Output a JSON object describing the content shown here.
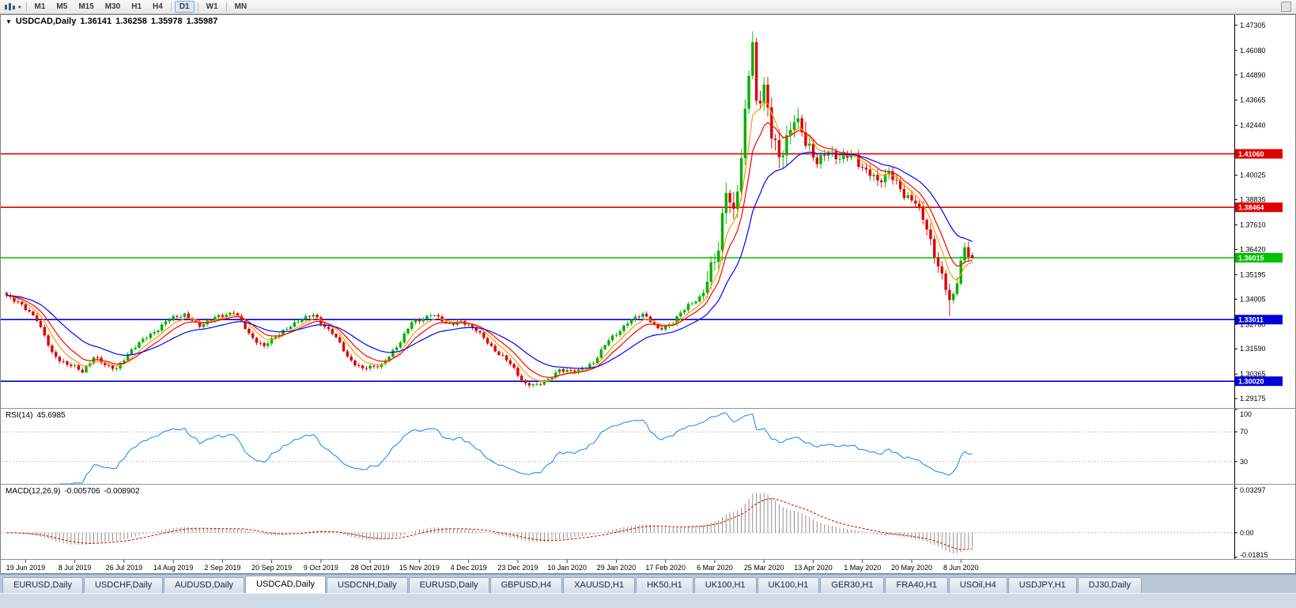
{
  "icons": {
    "symbol_dropdown": "▼",
    "toolbar_caret": "▾"
  },
  "colors": {
    "candle_up": "#00b000",
    "candle_down": "#dc0000",
    "ma_fast": "#ff9900",
    "ma_mid": "#ff0000",
    "ma_slow": "#0000ff",
    "rsi_line": "#1e90ff",
    "macd_hist": "#8f8f8f",
    "macd_signal": "#e00000",
    "hline_red": "#e00000",
    "hline_green": "#00c000",
    "hline_blue": "#0000d8"
  },
  "toolbar": {
    "timeframes": [
      {
        "label": "M1"
      },
      {
        "label": "M5"
      },
      {
        "label": "M15"
      },
      {
        "label": "M30"
      },
      {
        "label": "H1"
      },
      {
        "label": "H4",
        "sep_after": true
      },
      {
        "label": "D1",
        "active": true,
        "sep_after": true
      },
      {
        "label": "W1",
        "sep_after": true
      },
      {
        "label": "MN"
      }
    ]
  },
  "chart": {
    "title": {
      "symbol": "USDCAD,Daily",
      "open": "1.36141",
      "high": "1.36258",
      "low": "1.35978",
      "close": "1.35987"
    },
    "price_ticks": [
      "1.47305",
      "1.46080",
      "1.44890",
      "1.43665",
      "1.42440",
      "1.40025",
      "1.38835",
      "1.37610",
      "1.36420",
      "1.35195",
      "1.34005",
      "1.32780",
      "1.31590",
      "1.30365",
      "1.29175"
    ],
    "hlines": [
      {
        "price": 1.4106,
        "label": "1.41060",
        "color": "#e00000"
      },
      {
        "price": 1.38464,
        "label": "1.38464",
        "color": "#e00000"
      },
      {
        "price": 1.36015,
        "label": "1.36015",
        "color": "#00c000"
      },
      {
        "price": 1.33011,
        "label": "1.33011",
        "color": "#0000d8"
      },
      {
        "price": 1.3002,
        "label": "1.30020",
        "color": "#0000d8"
      }
    ],
    "date_labels": [
      "19 Jun 2019",
      "8 Jul 2019",
      "26 Jul 2019",
      "14 Aug 2019",
      "2 Sep 2019",
      "20 Sep 2019",
      "9 Oct 2019",
      "28 Oct 2019",
      "15 Nov 2019",
      "4 Dec 2019",
      "23 Dec 2019",
      "10 Jan 2020",
      "29 Jan 2020",
      "17 Feb 2020",
      "6 Mar 2020",
      "25 Mar 2020",
      "13 Apr 2020",
      "1 May 2020",
      "20 May 2020",
      "8 Jun 2020"
    ]
  },
  "rsi": {
    "name": "RSI(14)",
    "value": "45.6985",
    "axis_labels": [
      "100",
      "70",
      "30"
    ],
    "axis_values": [
      100,
      70,
      30
    ],
    "levels": [
      70,
      30
    ]
  },
  "macd": {
    "name": "MACD(12,26,9)",
    "value_main": "-0.005706",
    "value_signal": "-0.008902",
    "axis_labels": [
      "0.03297",
      "0.00",
      "-0.01815"
    ],
    "axis_values": [
      0.03297,
      0,
      -0.01815
    ]
  },
  "tabs": [
    {
      "label": "EURUSD,Daily"
    },
    {
      "label": "USDCHF,Daily"
    },
    {
      "label": "AUDUSD,Daily"
    },
    {
      "label": "USDCAD,Daily",
      "active": true
    },
    {
      "label": "USDCNH,Daily"
    },
    {
      "label": "EURUSD,Daily"
    },
    {
      "label": "GBPUSD,H4"
    },
    {
      "label": "XAUUSD,H1"
    },
    {
      "label": "HK50,H1"
    },
    {
      "label": "UK100,H1"
    },
    {
      "label": "UK100,H1"
    },
    {
      "label": "GER30,H1"
    },
    {
      "label": "FRA40,H1"
    },
    {
      "label": "USOil,H4"
    },
    {
      "label": "USDJPY,H1"
    },
    {
      "label": "DJ30,Daily"
    }
  ],
  "chart_data": {
    "type": "candlestick",
    "symbol": "USDCAD",
    "period": "Daily",
    "last_ohlc": [
      1.36141,
      1.36258,
      1.35978,
      1.35987
    ],
    "n_candles": 256,
    "main_range": [
      1.2872,
      1.4784
    ],
    "close_anchors": [
      [
        0,
        1.3415
      ],
      [
        3,
        1.339
      ],
      [
        8,
        1.33
      ],
      [
        12,
        1.314
      ],
      [
        16,
        1.308
      ],
      [
        20,
        1.3052
      ],
      [
        23,
        1.312
      ],
      [
        26,
        1.3078
      ],
      [
        29,
        1.3065
      ],
      [
        33,
        1.3155
      ],
      [
        38,
        1.323
      ],
      [
        42,
        1.329
      ],
      [
        47,
        1.333
      ],
      [
        51,
        1.3268
      ],
      [
        55,
        1.3312
      ],
      [
        60,
        1.3338
      ],
      [
        64,
        1.3232
      ],
      [
        68,
        1.317
      ],
      [
        73,
        1.3248
      ],
      [
        78,
        1.3305
      ],
      [
        81,
        1.3322
      ],
      [
        86,
        1.3238
      ],
      [
        90,
        1.312
      ],
      [
        94,
        1.3062
      ],
      [
        99,
        1.308
      ],
      [
        104,
        1.3195
      ],
      [
        107,
        1.3285
      ],
      [
        112,
        1.3328
      ],
      [
        116,
        1.3282
      ],
      [
        120,
        1.3292
      ],
      [
        124,
        1.325
      ],
      [
        128,
        1.3172
      ],
      [
        133,
        1.3082
      ],
      [
        137,
        1.2992
      ],
      [
        140,
        1.2978
      ],
      [
        143,
        1.301
      ],
      [
        146,
        1.3058
      ],
      [
        151,
        1.3048
      ],
      [
        155,
        1.3098
      ],
      [
        159,
        1.3198
      ],
      [
        164,
        1.3288
      ],
      [
        168,
        1.3328
      ],
      [
        172,
        1.3258
      ],
      [
        176,
        1.3282
      ],
      [
        180,
        1.3378
      ],
      [
        184,
        1.3415
      ],
      [
        186,
        1.3545
      ],
      [
        188,
        1.3662
      ],
      [
        190,
        1.3938
      ],
      [
        192,
        1.3815
      ],
      [
        194,
        1.4078
      ],
      [
        196,
        1.4495
      ],
      [
        197,
        1.4638
      ],
      [
        198,
        1.436
      ],
      [
        200,
        1.4452
      ],
      [
        202,
        1.4185
      ],
      [
        204,
        1.4062
      ],
      [
        206,
        1.4198
      ],
      [
        208,
        1.4295
      ],
      [
        211,
        1.4152
      ],
      [
        214,
        1.4065
      ],
      [
        217,
        1.4128
      ],
      [
        220,
        1.4078
      ],
      [
        224,
        1.4098
      ],
      [
        227,
        1.4022
      ],
      [
        230,
        1.3962
      ],
      [
        233,
        1.4028
      ],
      [
        237,
        1.3902
      ],
      [
        240,
        1.3868
      ],
      [
        243,
        1.3758
      ],
      [
        245,
        1.3622
      ],
      [
        247,
        1.3492
      ],
      [
        249,
        1.3392
      ],
      [
        250,
        1.3422
      ],
      [
        252,
        1.3598
      ],
      [
        253,
        1.3642
      ],
      [
        254,
        1.3612
      ],
      [
        255,
        1.35987
      ]
    ],
    "vol_zones": [
      [
        0,
        183,
        0.0016
      ],
      [
        184,
        212,
        0.007
      ],
      [
        213,
        242,
        0.0036
      ],
      [
        243,
        255,
        0.0042
      ]
    ],
    "high_overrides": [
      [
        197,
        1.4668
      ]
    ],
    "low_overrides": [
      [
        249,
        1.3318
      ]
    ],
    "mas": [
      {
        "period": 6,
        "color_key": "ma_fast"
      },
      {
        "period": 10,
        "color_key": "ma_mid"
      },
      {
        "period": 22,
        "color_key": "ma_slow"
      }
    ],
    "rsi_period": 14,
    "macd": [
      12,
      26,
      9
    ],
    "macd_range": [
      -0.02,
      0.035
    ],
    "date_first_index": 5,
    "date_step": 13,
    "hline_prices": [
      1.4106,
      1.38464,
      1.36015,
      1.33011,
      1.3002
    ]
  }
}
